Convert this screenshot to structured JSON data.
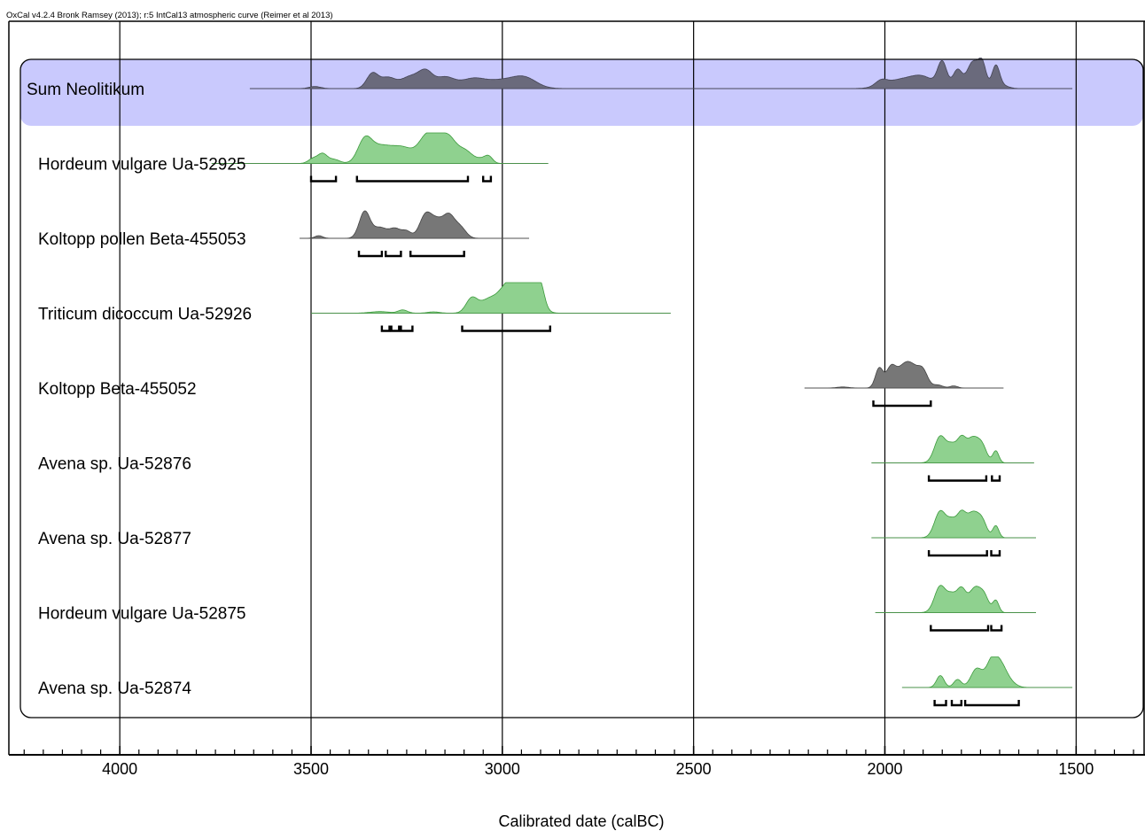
{
  "header_text": "OxCal v4.2.4 Bronk Ramsey (2013); r:5 IntCal13 atmospheric curve (Reimer et al 2013)",
  "colors": {
    "sum_band": "#c9c9fd",
    "sum_fill": "#6a6a7c",
    "green_fill": "#8fd18f",
    "green_stroke": "#3c9a3c",
    "gray_fill": "#777777",
    "gray_stroke": "#444444"
  },
  "chart_data": {
    "type": "oxcal-multiplot",
    "xlabel": "Calibrated date (calBC)",
    "x_axis_reversed": true,
    "xlim": [
      4290,
      1320
    ],
    "xticks": [
      4000,
      3500,
      3000,
      2500,
      2000,
      1500
    ],
    "minor_tick_step": 50,
    "gridlines": [
      4000,
      3500,
      3000,
      2500,
      2000,
      1500
    ],
    "group": {
      "name": "Sum Neolitikum",
      "type": "sum"
    },
    "samples": [
      {
        "label": "Sum Neolitikum",
        "kind": "sum",
        "baseline_range": [
          3660,
          1510
        ],
        "peaks": [
          [
            3490,
            15,
            0.08
          ],
          [
            3340,
            15,
            0.55
          ],
          [
            3300,
            20,
            0.4
          ],
          [
            3240,
            25,
            0.45
          ],
          [
            3200,
            18,
            0.55
          ],
          [
            3150,
            25,
            0.42
          ],
          [
            3080,
            30,
            0.3
          ],
          [
            3000,
            50,
            0.32
          ],
          [
            2940,
            30,
            0.3
          ],
          [
            2010,
            15,
            0.2
          ],
          [
            1960,
            40,
            0.32
          ],
          [
            1900,
            30,
            0.38
          ],
          [
            1850,
            12,
            0.95
          ],
          [
            1810,
            12,
            0.7
          ],
          [
            1770,
            15,
            1.0
          ],
          [
            1745,
            10,
            0.85
          ],
          [
            1710,
            10,
            0.85
          ],
          [
            1690,
            15,
            0.1
          ]
        ],
        "ranges": []
      },
      {
        "label": "Hordeum vulgare Ua-52925",
        "kind": "green",
        "baseline_range": [
          3760,
          2880
        ],
        "peaks": [
          [
            3495,
            12,
            0.18
          ],
          [
            3470,
            12,
            0.35
          ],
          [
            3440,
            15,
            0.15
          ],
          [
            3360,
            18,
            0.8
          ],
          [
            3320,
            28,
            0.58
          ],
          [
            3260,
            30,
            0.58
          ],
          [
            3200,
            20,
            0.82
          ],
          [
            3170,
            20,
            0.7
          ],
          [
            3140,
            18,
            0.76
          ],
          [
            3100,
            22,
            0.5
          ],
          [
            3050,
            15,
            0.15
          ],
          [
            3035,
            10,
            0.2
          ]
        ],
        "ranges": [
          [
            3500,
            3435
          ],
          [
            3380,
            3090
          ],
          [
            3050,
            3030
          ]
        ]
      },
      {
        "label": "Koltopp pollen Beta-455053",
        "kind": "gray",
        "baseline_range": [
          3530,
          2930
        ],
        "peaks": [
          [
            3480,
            10,
            0.1
          ],
          [
            3360,
            14,
            1.0
          ],
          [
            3320,
            18,
            0.4
          ],
          [
            3280,
            15,
            0.35
          ],
          [
            3250,
            12,
            0.25
          ],
          [
            3200,
            16,
            0.9
          ],
          [
            3170,
            15,
            0.55
          ],
          [
            3140,
            15,
            0.82
          ],
          [
            3110,
            15,
            0.4
          ]
        ],
        "ranges": [
          [
            3375,
            3315
          ],
          [
            3305,
            3265
          ],
          [
            3240,
            3100
          ]
        ]
      },
      {
        "label": "Triticum dicoccum Ua-52926",
        "kind": "green",
        "baseline_range": [
          3500,
          2560
        ],
        "peaks": [
          [
            3320,
            25,
            0.06
          ],
          [
            3260,
            12,
            0.12
          ],
          [
            3180,
            15,
            0.05
          ],
          [
            3080,
            15,
            0.55
          ],
          [
            3040,
            20,
            0.42
          ],
          [
            2990,
            25,
            0.9
          ],
          [
            2960,
            20,
            0.8
          ],
          [
            2920,
            20,
            1.0
          ],
          [
            2900,
            10,
            0.6
          ]
        ],
        "ranges": [
          [
            3315,
            3295
          ],
          [
            3290,
            3270
          ],
          [
            3265,
            3235
          ],
          [
            3105,
            2875
          ]
        ]
      },
      {
        "label": "Koltopp Beta-455052",
        "kind": "gray",
        "baseline_range": [
          2210,
          1690
        ],
        "peaks": [
          [
            2110,
            15,
            0.04
          ],
          [
            2015,
            10,
            0.72
          ],
          [
            1985,
            12,
            0.58
          ],
          [
            1940,
            28,
            1.0
          ],
          [
            1900,
            12,
            0.4
          ],
          [
            1860,
            12,
            0.1
          ],
          [
            1820,
            10,
            0.08
          ]
        ],
        "ranges": [
          [
            2030,
            1880
          ]
        ]
      },
      {
        "label": "Avena sp. Ua-52876",
        "kind": "green",
        "baseline_range": [
          2035,
          1610
        ],
        "peaks": [
          [
            1855,
            15,
            1.0
          ],
          [
            1825,
            12,
            0.55
          ],
          [
            1800,
            12,
            0.85
          ],
          [
            1770,
            15,
            0.9
          ],
          [
            1745,
            12,
            0.55
          ],
          [
            1710,
            8,
            0.45
          ]
        ],
        "ranges": [
          [
            1885,
            1735
          ],
          [
            1720,
            1700
          ]
        ]
      },
      {
        "label": "Avena sp. Ua-52877",
        "kind": "green",
        "baseline_range": [
          2035,
          1605
        ],
        "peaks": [
          [
            1855,
            15,
            1.0
          ],
          [
            1825,
            12,
            0.55
          ],
          [
            1800,
            12,
            0.85
          ],
          [
            1770,
            15,
            0.9
          ],
          [
            1745,
            12,
            0.55
          ],
          [
            1710,
            8,
            0.45
          ]
        ],
        "ranges": [
          [
            1885,
            1733
          ],
          [
            1722,
            1700
          ]
        ]
      },
      {
        "label": "Hordeum vulgare Ua-52875",
        "kind": "green",
        "baseline_range": [
          2025,
          1605
        ],
        "peaks": [
          [
            1855,
            15,
            1.0
          ],
          [
            1825,
            12,
            0.55
          ],
          [
            1800,
            12,
            0.85
          ],
          [
            1765,
            15,
            0.9
          ],
          [
            1740,
            12,
            0.55
          ],
          [
            1710,
            8,
            0.45
          ]
        ],
        "ranges": [
          [
            1880,
            1730
          ],
          [
            1722,
            1695
          ]
        ]
      },
      {
        "label": "Avena sp. Ua-52874",
        "kind": "green",
        "baseline_range": [
          1955,
          1510
        ],
        "peaks": [
          [
            1855,
            10,
            0.45
          ],
          [
            1810,
            10,
            0.3
          ],
          [
            1760,
            15,
            0.7
          ],
          [
            1720,
            15,
            1.0
          ],
          [
            1695,
            15,
            0.7
          ],
          [
            1670,
            15,
            0.15
          ]
        ],
        "ranges": [
          [
            1870,
            1840
          ],
          [
            1825,
            1800
          ],
          [
            1790,
            1650
          ]
        ]
      }
    ]
  }
}
